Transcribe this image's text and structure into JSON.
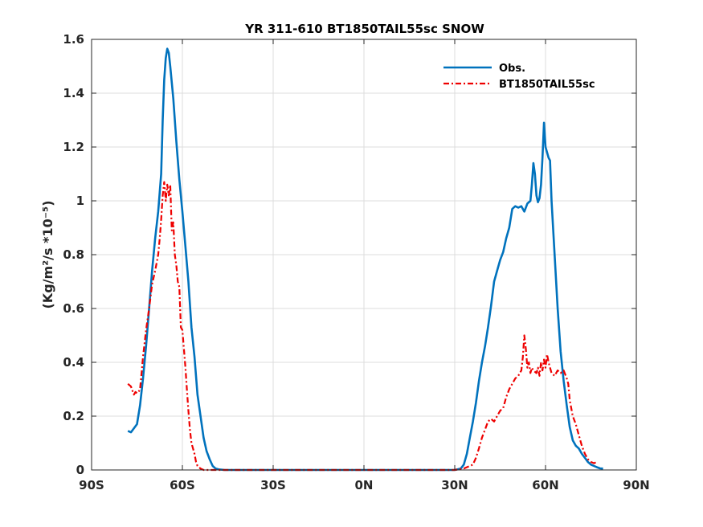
{
  "chart_data": {
    "type": "line",
    "title": "YR 311-610 BT1850TAIL55sc SNOW",
    "xlabel": "",
    "ylabel": "(Kg/m²/s *10⁻⁵)",
    "xlim": [
      -90,
      90
    ],
    "ylim": [
      0,
      1.6
    ],
    "x_ticks": [
      -90,
      -60,
      -30,
      0,
      30,
      60,
      90
    ],
    "x_tick_labels": [
      "90S",
      "60S",
      "30S",
      "0N",
      "30N",
      "60N",
      "90N"
    ],
    "y_ticks": [
      0,
      0.2,
      0.4,
      0.6,
      0.8,
      1,
      1.2,
      1.4,
      1.6
    ],
    "y_tick_labels": [
      "0",
      "0.2",
      "0.4",
      "0.6",
      "0.8",
      "1",
      "1.2",
      "1.4",
      "1.6"
    ],
    "grid": true,
    "legend_position": "top-right",
    "series": [
      {
        "name": "Obs.",
        "color": "#0072BD",
        "style": "solid",
        "points": [
          [
            -78,
            0.145
          ],
          [
            -77,
            0.14
          ],
          [
            -76,
            0.155
          ],
          [
            -75,
            0.17
          ],
          [
            -74,
            0.24
          ],
          [
            -73,
            0.34
          ],
          [
            -72,
            0.46
          ],
          [
            -71,
            0.6
          ],
          [
            -70,
            0.74
          ],
          [
            -69,
            0.86
          ],
          [
            -68,
            0.96
          ],
          [
            -67,
            1.1
          ],
          [
            -66.5,
            1.3
          ],
          [
            -66,
            1.45
          ],
          [
            -65.5,
            1.53
          ],
          [
            -65,
            1.565
          ],
          [
            -64.5,
            1.55
          ],
          [
            -64,
            1.5
          ],
          [
            -63,
            1.38
          ],
          [
            -62,
            1.22
          ],
          [
            -61,
            1.08
          ],
          [
            -60,
            0.96
          ],
          [
            -59,
            0.83
          ],
          [
            -58,
            0.7
          ],
          [
            -57,
            0.53
          ],
          [
            -56,
            0.42
          ],
          [
            -55,
            0.28
          ],
          [
            -54,
            0.2
          ],
          [
            -53,
            0.12
          ],
          [
            -52,
            0.07
          ],
          [
            -51,
            0.04
          ],
          [
            -50,
            0.015
          ],
          [
            -49,
            0.005
          ],
          [
            -48,
            0.002
          ],
          [
            -46,
            0.0
          ],
          [
            30,
            0.0
          ],
          [
            32,
            0.005
          ],
          [
            33,
            0.02
          ],
          [
            34,
            0.06
          ],
          [
            35,
            0.12
          ],
          [
            36,
            0.18
          ],
          [
            37,
            0.25
          ],
          [
            38,
            0.33
          ],
          [
            39,
            0.4
          ],
          [
            40,
            0.46
          ],
          [
            41,
            0.53
          ],
          [
            42,
            0.61
          ],
          [
            43,
            0.7
          ],
          [
            44,
            0.74
          ],
          [
            45,
            0.78
          ],
          [
            46,
            0.81
          ],
          [
            47,
            0.86
          ],
          [
            48,
            0.9
          ],
          [
            49,
            0.97
          ],
          [
            50,
            0.98
          ],
          [
            51,
            0.975
          ],
          [
            52,
            0.98
          ],
          [
            53,
            0.96
          ],
          [
            54,
            0.99
          ],
          [
            55,
            1.0
          ],
          [
            55.5,
            1.06
          ],
          [
            56,
            1.14
          ],
          [
            56.5,
            1.1
          ],
          [
            57,
            1.02
          ],
          [
            57.5,
            0.995
          ],
          [
            58,
            1.01
          ],
          [
            58.5,
            1.06
          ],
          [
            59,
            1.16
          ],
          [
            59.5,
            1.29
          ],
          [
            60,
            1.2
          ],
          [
            61,
            1.16
          ],
          [
            61.5,
            1.15
          ],
          [
            62,
            1.0
          ],
          [
            63,
            0.8
          ],
          [
            64,
            0.6
          ],
          [
            65,
            0.44
          ],
          [
            66,
            0.33
          ],
          [
            67,
            0.24
          ],
          [
            68,
            0.16
          ],
          [
            69,
            0.11
          ],
          [
            70,
            0.09
          ],
          [
            71,
            0.08
          ],
          [
            72,
            0.06
          ],
          [
            73,
            0.045
          ],
          [
            74,
            0.03
          ],
          [
            75,
            0.02
          ],
          [
            76,
            0.015
          ],
          [
            77,
            0.01
          ],
          [
            78,
            0.006
          ],
          [
            79,
            0.005
          ]
        ]
      },
      {
        "name": "BT1850TAIL55sc",
        "color": "#EE0000",
        "style": "dash-dot",
        "points": [
          [
            -78,
            0.32
          ],
          [
            -77,
            0.31
          ],
          [
            -76.5,
            0.295
          ],
          [
            -76,
            0.28
          ],
          [
            -75.5,
            0.29
          ],
          [
            -75,
            0.285
          ],
          [
            -74.5,
            0.29
          ],
          [
            -74,
            0.3
          ],
          [
            -73.5,
            0.36
          ],
          [
            -73,
            0.42
          ],
          [
            -72,
            0.52
          ],
          [
            -71,
            0.6
          ],
          [
            -70,
            0.69
          ],
          [
            -69,
            0.74
          ],
          [
            -68,
            0.8
          ],
          [
            -67.5,
            0.86
          ],
          [
            -67,
            0.93
          ],
          [
            -66.5,
            1.02
          ],
          [
            -66,
            1.07
          ],
          [
            -65.5,
            1.0
          ],
          [
            -65,
            1.06
          ],
          [
            -64.5,
            1.02
          ],
          [
            -64,
            1.06
          ],
          [
            -63.5,
            0.89
          ],
          [
            -63,
            0.92
          ],
          [
            -62.5,
            0.8
          ],
          [
            -62,
            0.76
          ],
          [
            -61.5,
            0.7
          ],
          [
            -61,
            0.68
          ],
          [
            -60.5,
            0.53
          ],
          [
            -60,
            0.52
          ],
          [
            -59.5,
            0.45
          ],
          [
            -59,
            0.38
          ],
          [
            -58.5,
            0.3
          ],
          [
            -58,
            0.22
          ],
          [
            -57.5,
            0.15
          ],
          [
            -57,
            0.1
          ],
          [
            -56,
            0.06
          ],
          [
            -55.5,
            0.03
          ],
          [
            -55,
            0.015
          ],
          [
            -54,
            0.005
          ],
          [
            -53,
            0.0
          ],
          [
            30,
            0.0
          ],
          [
            33,
            0.005
          ],
          [
            35,
            0.015
          ],
          [
            36,
            0.02
          ],
          [
            37,
            0.045
          ],
          [
            38,
            0.08
          ],
          [
            39,
            0.12
          ],
          [
            40,
            0.15
          ],
          [
            41,
            0.18
          ],
          [
            42,
            0.19
          ],
          [
            43,
            0.18
          ],
          [
            44,
            0.2
          ],
          [
            45,
            0.22
          ],
          [
            46,
            0.23
          ],
          [
            47,
            0.27
          ],
          [
            48,
            0.3
          ],
          [
            49,
            0.32
          ],
          [
            50,
            0.34
          ],
          [
            51,
            0.35
          ],
          [
            52,
            0.37
          ],
          [
            52.5,
            0.42
          ],
          [
            53,
            0.5
          ],
          [
            53.5,
            0.45
          ],
          [
            54,
            0.38
          ],
          [
            54.5,
            0.4
          ],
          [
            55,
            0.36
          ],
          [
            55.5,
            0.38
          ],
          [
            56,
            0.37
          ],
          [
            57,
            0.36
          ],
          [
            57.5,
            0.38
          ],
          [
            58,
            0.35
          ],
          [
            58.5,
            0.4
          ],
          [
            59,
            0.37
          ],
          [
            59.5,
            0.41
          ],
          [
            60,
            0.38
          ],
          [
            60.5,
            0.43
          ],
          [
            61,
            0.4
          ],
          [
            61.5,
            0.38
          ],
          [
            62,
            0.36
          ],
          [
            63,
            0.35
          ],
          [
            64,
            0.37
          ],
          [
            65,
            0.36
          ],
          [
            66,
            0.37
          ],
          [
            67,
            0.34
          ],
          [
            67.5,
            0.32
          ],
          [
            68,
            0.26
          ],
          [
            69,
            0.2
          ],
          [
            70,
            0.17
          ],
          [
            71,
            0.13
          ],
          [
            72,
            0.09
          ],
          [
            73,
            0.06
          ],
          [
            74,
            0.04
          ],
          [
            75,
            0.03
          ],
          [
            76,
            0.025
          ],
          [
            77,
            0.03
          ]
        ]
      }
    ]
  }
}
